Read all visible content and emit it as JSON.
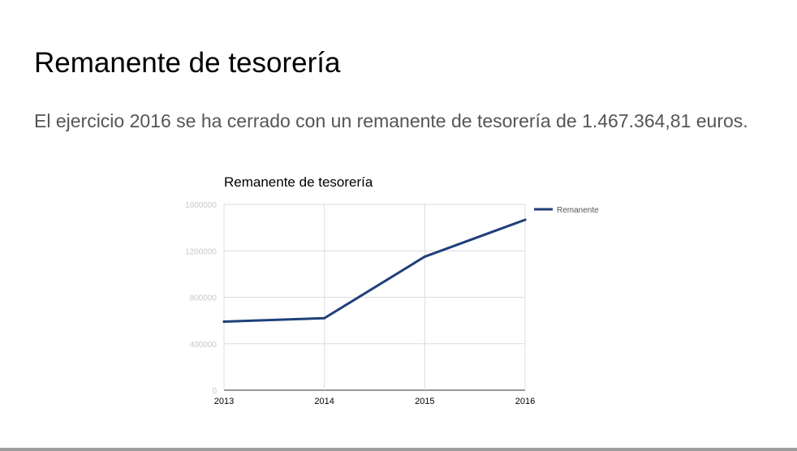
{
  "slide": {
    "title": "Remanente de tesorería",
    "body": "El ejercicio 2016 se ha cerrado con un remanente de tesorería de 1.467.364,81 euros."
  },
  "chart_data": {
    "type": "line",
    "title": "Remanente de tesorería",
    "x": [
      "2013",
      "2014",
      "2015",
      "2016"
    ],
    "series": [
      {
        "name": "Remanente",
        "values": [
          590000,
          620000,
          1150000,
          1467364.81
        ],
        "color": "#1f3f7a"
      }
    ],
    "yticks": [
      "0",
      "400000",
      "800000",
      "1200000",
      "1600000"
    ],
    "ylim": [
      0,
      1600000
    ],
    "grid": true,
    "legend": "right"
  }
}
